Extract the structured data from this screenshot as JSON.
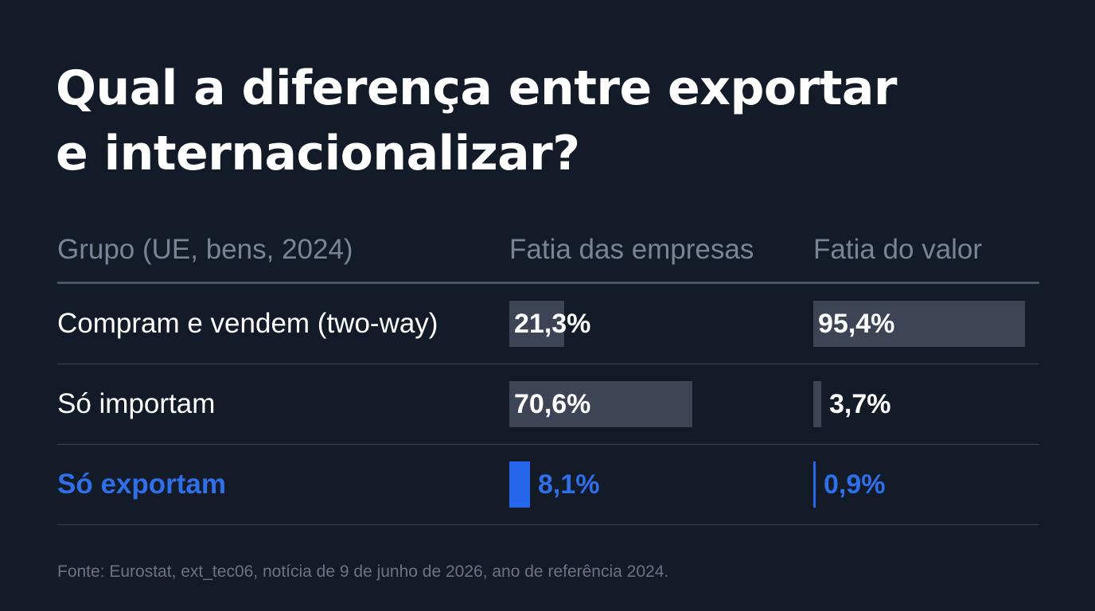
{
  "title_line1": "Qual a diferença entre exportar",
  "title_line2": "e internacionalizar?",
  "chart_data": {
    "type": "table",
    "columns": [
      "Grupo (UE, bens, 2024)",
      "Fatia das empresas",
      "Fatia do valor"
    ],
    "rows": [
      {
        "group": "Compram e vendem (two-way)",
        "empresas": 21.3,
        "empresas_label": "21,3%",
        "valor": 95.4,
        "valor_label": "95,4%",
        "highlight": false
      },
      {
        "group": "Só importam",
        "empresas": 70.6,
        "empresas_label": "70,6%",
        "valor": 3.7,
        "valor_label": "3,7%",
        "highlight": false
      },
      {
        "group": "Só exportam",
        "empresas": 8.1,
        "empresas_label": "8,1%",
        "valor": 0.9,
        "valor_label": "0,9%",
        "highlight": true
      }
    ]
  },
  "colors": {
    "background": "#131a28",
    "bar": "#3d4456",
    "highlight": "#2566ea",
    "highlight_text": "#2f6fe8"
  },
  "source": "Fonte: Eurostat, ext_tec06, notícia de 9 de junho de 2026, ano de referência 2024."
}
